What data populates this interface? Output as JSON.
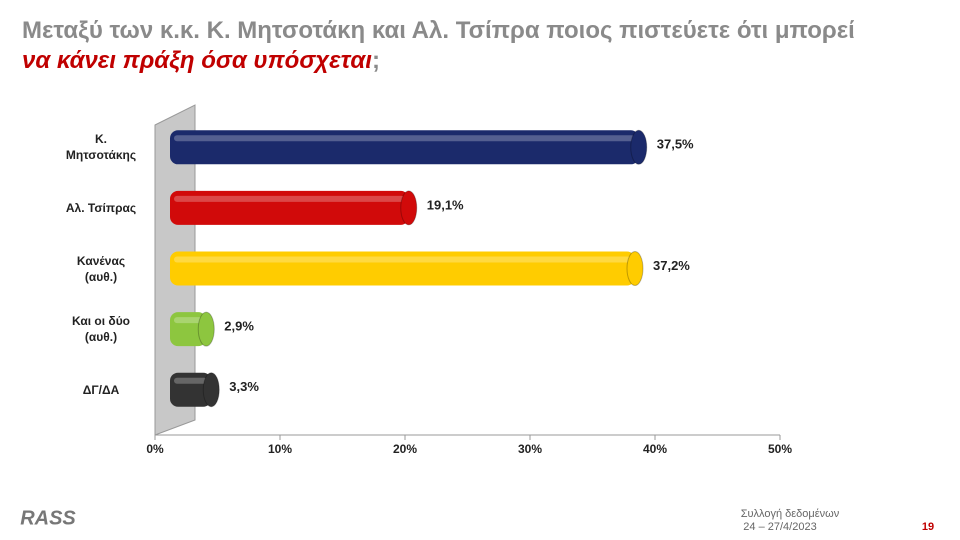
{
  "chart_data": {
    "type": "bar",
    "orientation": "horizontal",
    "title": "Μεταξύ των κ.κ. Κ. Μητσοτάκη και Αλ. Τσίπρα ποιος πιστεύετε ότι μπορεί",
    "title_highlight": "να κάνει πράξη όσα υπόσχεται",
    "title_end": ";",
    "categories": [
      "Κ. Μητσοτάκης",
      "Αλ. Τσίπρας",
      "Κανένας (αυθ.)",
      "Και οι δύο (αυθ.)",
      "ΔΓ/ΔΑ"
    ],
    "values": [
      37.5,
      19.1,
      37.2,
      2.9,
      3.3
    ],
    "value_labels": [
      "37,5%",
      "19,1%",
      "37,2%",
      "2,9%",
      "3,3%"
    ],
    "colors": [
      "#1b2a6b",
      "#d10a0a",
      "#ffcc00",
      "#8dc63f",
      "#333333"
    ],
    "xlim": [
      0,
      50
    ],
    "xticks": [
      {
        "value": 0,
        "label": "0%"
      },
      {
        "value": 10,
        "label": "10%"
      },
      {
        "value": 20,
        "label": "20%"
      },
      {
        "value": 30,
        "label": "30%"
      },
      {
        "value": 40,
        "label": "40%"
      },
      {
        "value": 50,
        "label": "50%"
      }
    ],
    "grid": false
  },
  "footer": {
    "logo": "RASS",
    "note_line1": "Συλλογή δεδομένων",
    "note_line2": "24 – 27/4/2023",
    "page": "19"
  }
}
